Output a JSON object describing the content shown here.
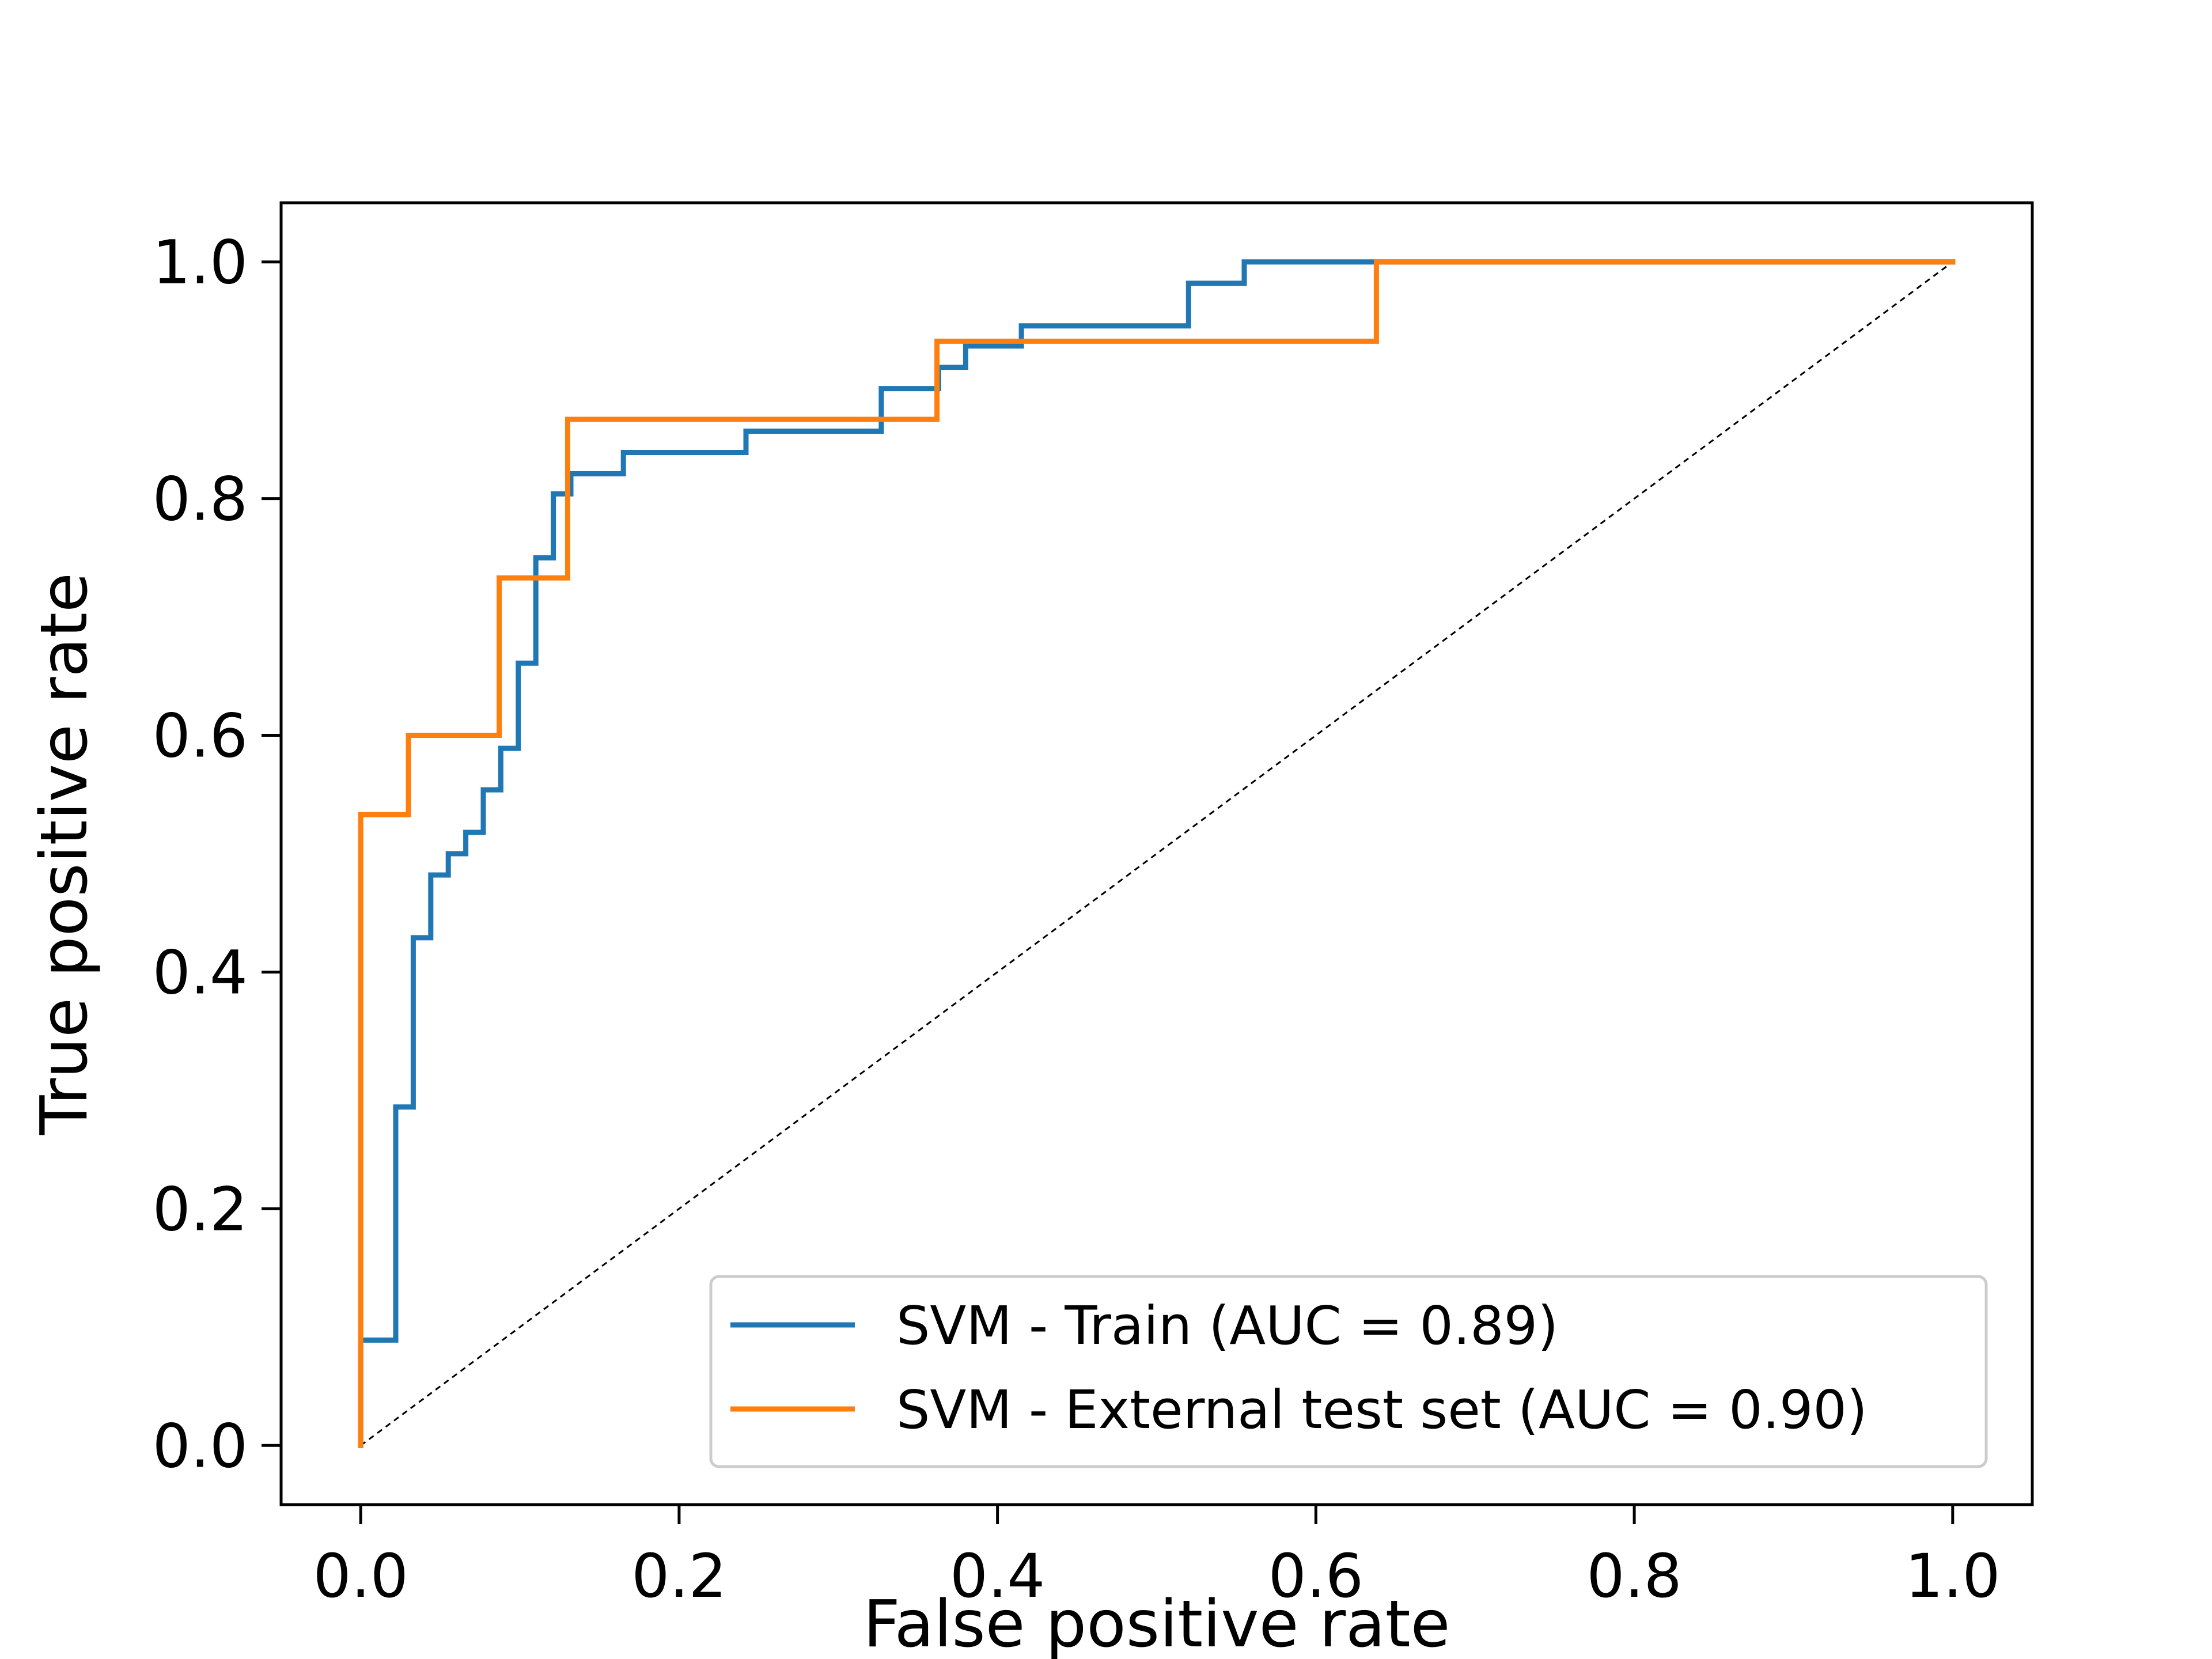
{
  "colors": {
    "train": "#1f77b4",
    "test": "#ff7f0e",
    "diagonal": "#000000",
    "axes": "#000000",
    "legend_border": "#cccccc"
  },
  "chart_data": {
    "type": "line",
    "title": "",
    "xlabel": "False positive rate",
    "ylabel": "True positive rate",
    "xlim": [
      -0.05,
      1.05
    ],
    "ylim": [
      -0.05,
      1.05
    ],
    "xticks": [
      0.0,
      0.2,
      0.4,
      0.6,
      0.8,
      1.0
    ],
    "xtick_labels": [
      "0.0",
      "0.2",
      "0.4",
      "0.6",
      "0.8",
      "1.0"
    ],
    "yticks": [
      0.0,
      0.2,
      0.4,
      0.6,
      0.8,
      1.0
    ],
    "ytick_labels": [
      "0.0",
      "0.2",
      "0.4",
      "0.6",
      "0.8",
      "1.0"
    ],
    "grid": false,
    "legend_position": "lower-right",
    "series": [
      {
        "name": "SVM - Train (AUC = 0.89)",
        "color": "#1f77b4",
        "style": "step",
        "x": [
          0.0,
          0.0,
          0.022,
          0.022,
          0.033,
          0.033,
          0.044,
          0.044,
          0.055,
          0.055,
          0.066,
          0.066,
          0.077,
          0.077,
          0.088,
          0.088,
          0.099,
          0.099,
          0.11,
          0.11,
          0.121,
          0.121,
          0.132,
          0.132,
          0.165,
          0.165,
          0.242,
          0.242,
          0.327,
          0.327,
          0.363,
          0.363,
          0.38,
          0.38,
          0.415,
          0.415,
          0.52,
          0.52,
          0.555,
          0.555,
          1.0
        ],
        "y": [
          0.0,
          0.089,
          0.089,
          0.286,
          0.286,
          0.429,
          0.429,
          0.482,
          0.482,
          0.5,
          0.5,
          0.518,
          0.518,
          0.554,
          0.554,
          0.589,
          0.589,
          0.661,
          0.661,
          0.75,
          0.75,
          0.804,
          0.804,
          0.821,
          0.821,
          0.839,
          0.839,
          0.857,
          0.857,
          0.893,
          0.893,
          0.911,
          0.911,
          0.929,
          0.929,
          0.946,
          0.946,
          0.982,
          0.982,
          1.0,
          1.0
        ]
      },
      {
        "name": "SVM - External test set (AUC = 0.90)",
        "color": "#ff7f0e",
        "style": "step",
        "x": [
          0.0,
          0.0,
          0.03,
          0.03,
          0.087,
          0.087,
          0.13,
          0.13,
          0.362,
          0.362,
          0.638,
          0.638,
          1.0
        ],
        "y": [
          0.0,
          0.533,
          0.533,
          0.6,
          0.6,
          0.733,
          0.733,
          0.867,
          0.867,
          0.933,
          0.933,
          1.0,
          1.0
        ]
      }
    ],
    "reference_line": {
      "x": [
        0.0,
        1.0
      ],
      "y": [
        0.0,
        1.0
      ],
      "style": "dashed"
    }
  }
}
